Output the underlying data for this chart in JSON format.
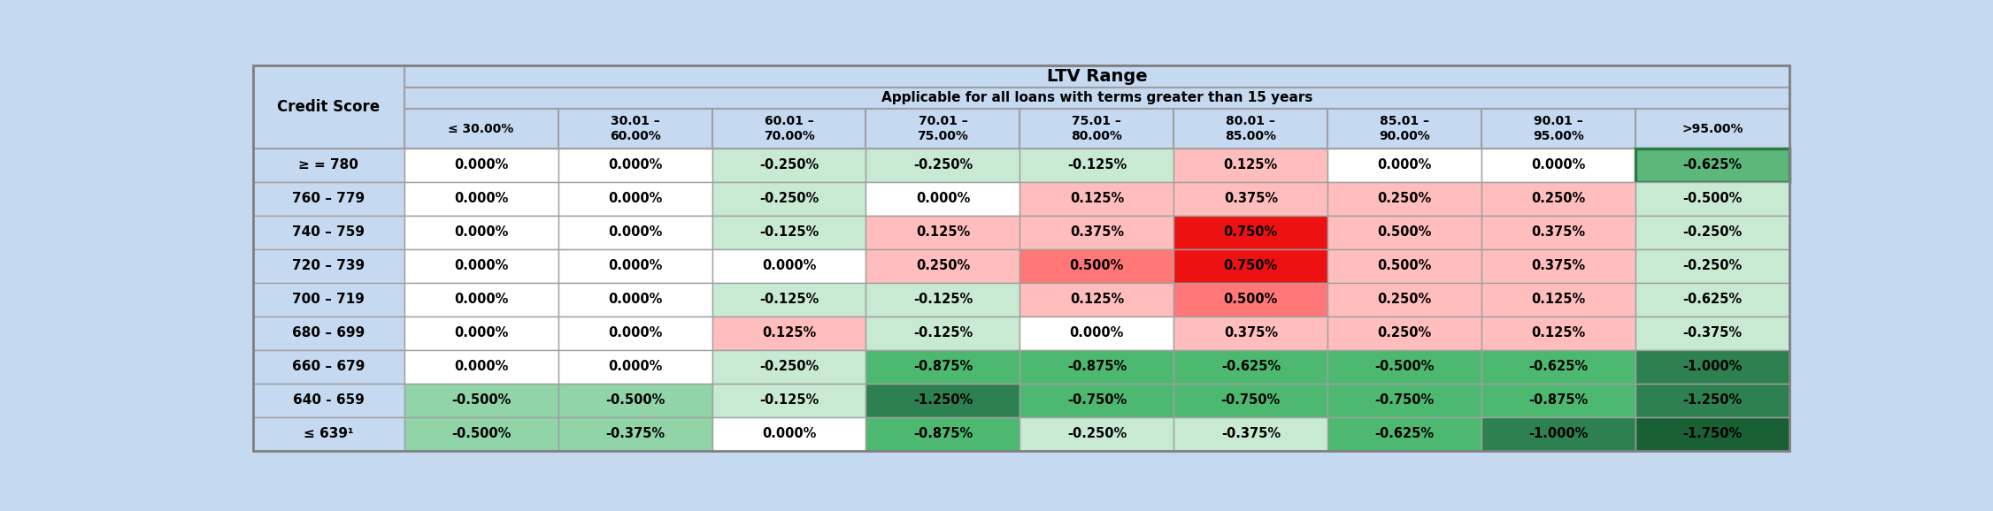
{
  "title": "LTV Range",
  "subtitle": "Applicable for all loans with terms greater than 15 years",
  "credit_score_label": "Credit Score",
  "col_headers": [
    "≤ 30.00%",
    "30.01 –\n60.00%",
    "60.01 –\n70.00%",
    "70.01 –\n75.00%",
    "75.01 –\n80.00%",
    "80.01 –\n85.00%",
    "85.01 –\n90.00%",
    "90.01 –\n95.00%",
    ">95.00%"
  ],
  "row_labels": [
    "≥ = 780",
    "760 – 779",
    "740 – 759",
    "720 – 739",
    "700 – 719",
    "680 – 699",
    "660 – 679",
    "640 - 659",
    "≤ 639¹"
  ],
  "values": [
    [
      0.0,
      0.0,
      -0.25,
      -0.25,
      -0.125,
      0.125,
      0.0,
      0.0,
      -0.625
    ],
    [
      0.0,
      0.0,
      -0.25,
      0.0,
      0.125,
      0.375,
      0.25,
      0.25,
      -0.5
    ],
    [
      0.0,
      0.0,
      -0.125,
      0.125,
      0.375,
      0.75,
      0.5,
      0.375,
      -0.25
    ],
    [
      0.0,
      0.0,
      0.0,
      0.25,
      0.5,
      0.75,
      0.5,
      0.375,
      -0.25
    ],
    [
      0.0,
      0.0,
      -0.125,
      -0.125,
      0.125,
      0.5,
      0.25,
      0.125,
      -0.625
    ],
    [
      0.0,
      0.0,
      0.125,
      -0.125,
      0.0,
      0.375,
      0.25,
      0.125,
      -0.375
    ],
    [
      0.0,
      0.0,
      -0.25,
      -0.875,
      -0.875,
      -0.625,
      -0.5,
      -0.625,
      -1.0
    ],
    [
      -0.5,
      -0.5,
      -0.125,
      -1.25,
      -0.75,
      -0.75,
      -0.75,
      -0.875,
      -1.25
    ],
    [
      -0.5,
      -0.375,
      0.0,
      -0.875,
      -0.25,
      -0.375,
      -0.625,
      -1.0,
      -1.75
    ]
  ],
  "cell_colors": [
    [
      "#FFFFFF",
      "#FFFFFF",
      "#C8EAD3",
      "#C8EAD3",
      "#C8EAD3",
      "#FFBDBD",
      "#FFFFFF",
      "#FFFFFF",
      "#5BB87A"
    ],
    [
      "#FFFFFF",
      "#FFFFFF",
      "#C8EAD3",
      "#FFFFFF",
      "#FFBDBD",
      "#FFBDBD",
      "#FFBDBD",
      "#FFBDBD",
      "#C8EAD3"
    ],
    [
      "#FFFFFF",
      "#FFFFFF",
      "#C8EAD3",
      "#FFBDBD",
      "#FFBDBD",
      "#EE1111",
      "#FFBDBD",
      "#FFBDBD",
      "#C8EAD3"
    ],
    [
      "#FFFFFF",
      "#FFFFFF",
      "#FFFFFF",
      "#FFBDBD",
      "#FF7777",
      "#EE1111",
      "#FFBDBD",
      "#FFBDBD",
      "#C8EAD3"
    ],
    [
      "#FFFFFF",
      "#FFFFFF",
      "#C8EAD3",
      "#C8EAD3",
      "#FFBDBD",
      "#FF7777",
      "#FFBDBD",
      "#FFBDBD",
      "#C8EAD3"
    ],
    [
      "#FFFFFF",
      "#FFFFFF",
      "#FFBDBD",
      "#C8EAD3",
      "#FFFFFF",
      "#FFBDBD",
      "#FFBDBD",
      "#FFBDBD",
      "#C8EAD3"
    ],
    [
      "#FFFFFF",
      "#FFFFFF",
      "#C8EAD3",
      "#4DB870",
      "#4DB870",
      "#4DB870",
      "#4DB870",
      "#4DB870",
      "#2D8050"
    ],
    [
      "#90D4A8",
      "#90D4A8",
      "#C8EAD3",
      "#2D8050",
      "#4DB870",
      "#4DB870",
      "#4DB870",
      "#4DB870",
      "#2D8050"
    ],
    [
      "#90D4A8",
      "#90D4A8",
      "#FFFFFF",
      "#4DB870",
      "#C8EAD3",
      "#C8EAD3",
      "#4DB870",
      "#2D8050",
      "#1A6035"
    ]
  ],
  "highlight_cell": [
    0,
    8
  ],
  "highlight_border_color": "#2D7A45",
  "header_bg": "#C5D9F1",
  "outer_bg": "#C5D9F1",
  "border_color": "#A0A0A0",
  "bold_border_color": "#808080"
}
